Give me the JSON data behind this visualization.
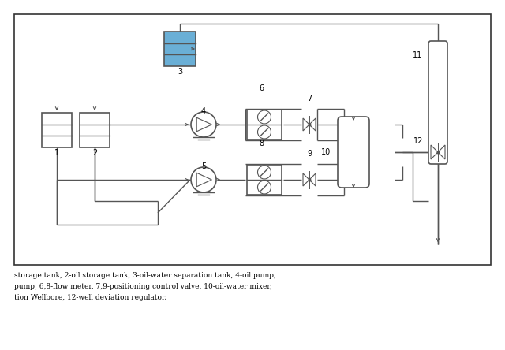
{
  "fig_width": 6.4,
  "fig_height": 4.44,
  "dpi": 100,
  "bg_color": "#ffffff",
  "border_color": "#555555",
  "line_color": "#555555",
  "tank_blue_color": "#6aafd6",
  "caption_line1": "storage tank, 2-oil storage tank, 3-oil-water separation tank, 4-oil pump,",
  "caption_line2": "pump, 6,8-flow meter, 7,9-positioning control valve, 10-oil-water mixer,",
  "caption_line3": "tion Wellbore, 12-well deviation regulator."
}
